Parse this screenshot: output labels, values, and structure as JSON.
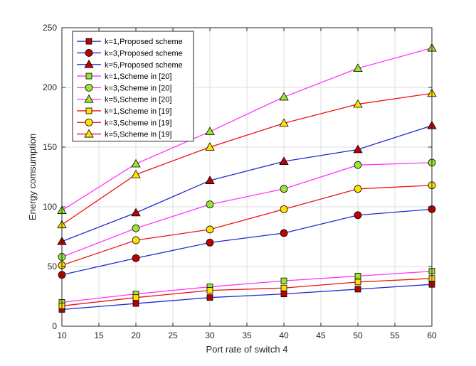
{
  "chart_data": {
    "type": "line",
    "title": "",
    "xlabel": "Port rate of switch 4",
    "ylabel": "Energy comsumption",
    "xlim": [
      10,
      60
    ],
    "ylim": [
      0,
      250
    ],
    "xticks": [
      10,
      15,
      20,
      25,
      30,
      35,
      40,
      45,
      50,
      55,
      60
    ],
    "yticks": [
      0,
      50,
      100,
      150,
      200,
      250
    ],
    "grid": true,
    "legend_position": "top-left",
    "x": [
      10,
      20,
      30,
      40,
      50,
      60
    ],
    "series": [
      {
        "name": "k=1,Proposed scheme",
        "color": "#1f2bd1",
        "marker": "square",
        "marker_fill": "#c00000",
        "values": [
          14,
          19,
          24,
          27,
          31,
          35
        ]
      },
      {
        "name": "k=3,Proposed scheme",
        "color": "#1f2bd1",
        "marker": "circle",
        "marker_fill": "#c00000",
        "values": [
          43,
          57,
          70,
          78,
          93,
          98
        ]
      },
      {
        "name": "k=5,Proposed scheme",
        "color": "#1f2bd1",
        "marker": "triangle",
        "marker_fill": "#c00000",
        "values": [
          71,
          95,
          122,
          138,
          148,
          168
        ]
      },
      {
        "name": "k=1,Scheme in [20]",
        "color": "#ff33ff",
        "marker": "square",
        "marker_fill": "#99e62e",
        "values": [
          20,
          27,
          33,
          38,
          42,
          46
        ]
      },
      {
        "name": "k=3,Scheme in [20]",
        "color": "#ff33ff",
        "marker": "circle",
        "marker_fill": "#99e62e",
        "values": [
          58,
          82,
          102,
          115,
          135,
          137
        ]
      },
      {
        "name": "k=5,Scheme in [20]",
        "color": "#ff33ff",
        "marker": "triangle",
        "marker_fill": "#99e62e",
        "values": [
          97,
          136,
          163,
          192,
          216,
          233
        ]
      },
      {
        "name": "k=1,Scheme in [19]",
        "color": "#ee1111",
        "marker": "square",
        "marker_fill": "#ffe000",
        "values": [
          17,
          24,
          30,
          32,
          37,
          40
        ]
      },
      {
        "name": "k=3,Scheme in [19]",
        "color": "#ee1111",
        "marker": "circle",
        "marker_fill": "#ffe000",
        "values": [
          51,
          72,
          81,
          98,
          115,
          118
        ]
      },
      {
        "name": "k=5,Scheme in [19]",
        "color": "#ee1111",
        "marker": "triangle",
        "marker_fill": "#ffe000",
        "values": [
          85,
          127,
          150,
          170,
          186,
          195
        ]
      }
    ]
  }
}
